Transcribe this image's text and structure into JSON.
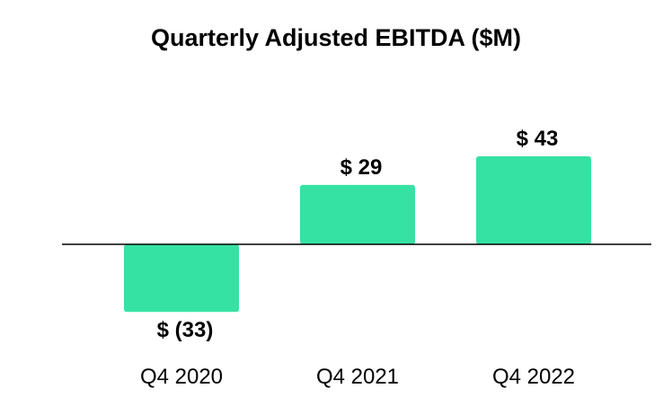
{
  "chart_data": {
    "type": "bar",
    "title": "Quarterly Adjusted EBITDA ($M)",
    "categories": [
      "Q4 2020",
      "Q4 2021",
      "Q4 2022"
    ],
    "values": [
      -33,
      29,
      43
    ],
    "data_labels": [
      "$ (33)",
      "$ 29",
      "$ 43"
    ],
    "xlabel": "",
    "ylabel": "",
    "grid": false,
    "legend": "none",
    "bar_color": "#36E2A3",
    "axis_color": "#000000"
  }
}
